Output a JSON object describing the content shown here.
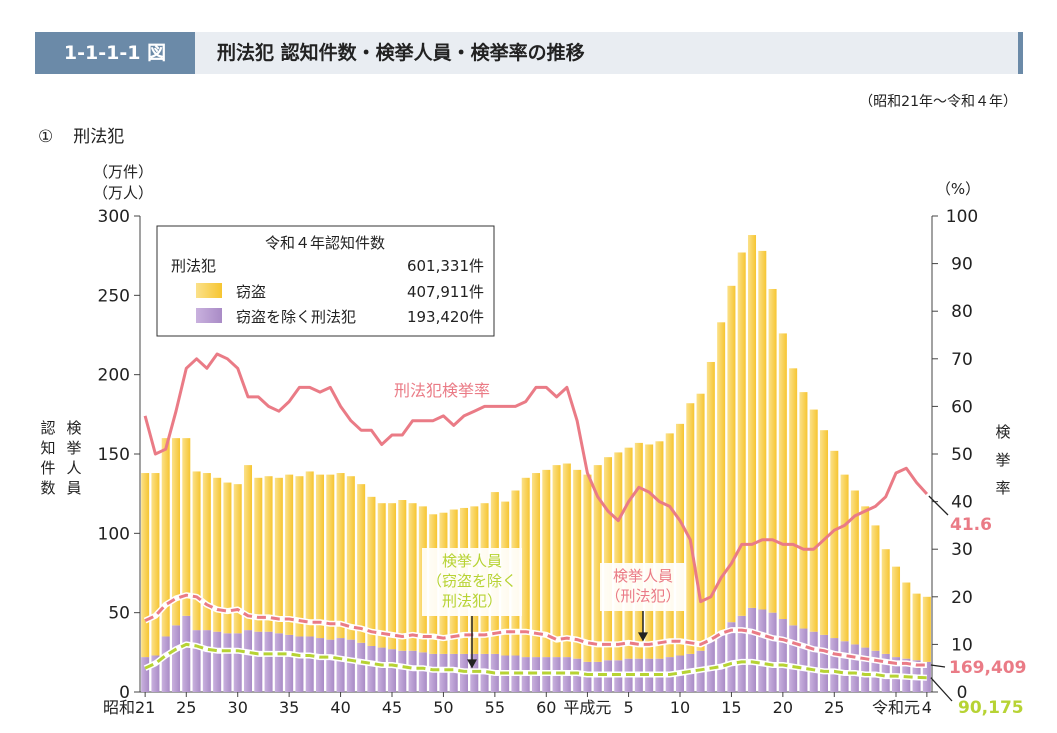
{
  "header": {
    "figure_number": "1-1-1-1 図",
    "title": "刑法犯 認知件数・検挙人員・検挙率の推移"
  },
  "period": "（昭和21年～令和４年）",
  "section": {
    "number": "①",
    "title": "刑法犯"
  },
  "colors": {
    "theft": "#f6c531",
    "theft_light": "#fbe18a",
    "non_theft": "#a98bc6",
    "non_theft_light": "#c9b1de",
    "arrest_rate": "#ea7b86",
    "arrested_total": "#ea7b86",
    "arrested_non_theft": "#b7d334",
    "header_accent": "#6b8aa8"
  },
  "chart_data": {
    "type": "bar",
    "title": "",
    "left_axis": {
      "unit_lines": [
        "（万件）",
        "（万人）"
      ],
      "label_a": "認知件数",
      "label_b": "検挙人員",
      "range": [
        0,
        300
      ],
      "ticks": [
        "0",
        "50",
        "100",
        "150",
        "200",
        "250",
        "300"
      ]
    },
    "right_axis": {
      "unit": "（%）",
      "label": "検挙率",
      "range": [
        0,
        100
      ],
      "ticks": [
        "0",
        "10",
        "20",
        "30",
        "40",
        "50",
        "60",
        "70",
        "80",
        "90",
        "100"
      ]
    },
    "x_tick_labels": [
      {
        "index": 0,
        "label": "昭和21"
      },
      {
        "index": 4,
        "label": "25"
      },
      {
        "index": 9,
        "label": "30"
      },
      {
        "index": 14,
        "label": "35"
      },
      {
        "index": 19,
        "label": "40"
      },
      {
        "index": 24,
        "label": "45"
      },
      {
        "index": 29,
        "label": "50"
      },
      {
        "index": 34,
        "label": "55"
      },
      {
        "index": 39,
        "label": "60"
      },
      {
        "index": 43,
        "label": "平成元"
      },
      {
        "index": 47,
        "label": "5"
      },
      {
        "index": 52,
        "label": "10"
      },
      {
        "index": 57,
        "label": "15"
      },
      {
        "index": 62,
        "label": "20"
      },
      {
        "index": 67,
        "label": "25"
      },
      {
        "index": 73,
        "label": "令和元"
      },
      {
        "index": 76,
        "label": "4"
      }
    ],
    "legend": {
      "heading": "令和４年認知件数",
      "rows": [
        {
          "label": "刑法犯",
          "value": "601,331件"
        },
        {
          "label": "窃盗",
          "value": "407,911件"
        },
        {
          "label": "窃盗を除く刑法犯",
          "value": "193,420件"
        }
      ],
      "position": "top-left"
    },
    "series": [
      {
        "name": "窃盗",
        "type": "bar",
        "axis": "left",
        "values": [
          116,
          115,
          125,
          118,
          112,
          100,
          99,
          97,
          95,
          94,
          104,
          97,
          98,
          98,
          101,
          101,
          104,
          103,
          104,
          104,
          103,
          100,
          94,
          91,
          92,
          95,
          93,
          92,
          88,
          89,
          91,
          92,
          93,
          95,
          102,
          97,
          104,
          113,
          116,
          118,
          121,
          122,
          119,
          118,
          124,
          128,
          131,
          133,
          136,
          135,
          137,
          141,
          146,
          158,
          162,
          176,
          195,
          212,
          229,
          235,
          226,
          204,
          180,
          162,
          149,
          140,
          129,
          118,
          105,
          97,
          89,
          79,
          66,
          57,
          48,
          42,
          41
        ]
      },
      {
        "name": "窃盗を除く刑法犯",
        "type": "bar",
        "axis": "left",
        "values": [
          22,
          23,
          35,
          42,
          48,
          39,
          39,
          38,
          37,
          37,
          39,
          38,
          38,
          37,
          36,
          35,
          35,
          34,
          33,
          34,
          33,
          31,
          29,
          28,
          27,
          26,
          26,
          25,
          24,
          24,
          24,
          24,
          24,
          24,
          24,
          23,
          23,
          22,
          22,
          22,
          22,
          22,
          21,
          19,
          19,
          20,
          20,
          21,
          21,
          21,
          21,
          22,
          23,
          24,
          26,
          32,
          38,
          44,
          48,
          53,
          52,
          50,
          46,
          42,
          40,
          38,
          36,
          34,
          32,
          30,
          28,
          26,
          24,
          22,
          21,
          20,
          19
        ]
      },
      {
        "name": "刑法犯検挙率",
        "type": "line",
        "axis": "right",
        "values": [
          58,
          50,
          51,
          59,
          68,
          70,
          68,
          71,
          70,
          68,
          62,
          62,
          60,
          59,
          61,
          64,
          64,
          63,
          64,
          60,
          57,
          55,
          55,
          52,
          54,
          54,
          57,
          57,
          57,
          58,
          56,
          58,
          59,
          60,
          60,
          60,
          60,
          61,
          64,
          64,
          62,
          64,
          57,
          46,
          41,
          38,
          36,
          40,
          43,
          42,
          40,
          39,
          36,
          32,
          19,
          20,
          24,
          27,
          31,
          31,
          32,
          32,
          31,
          31,
          30,
          30,
          32,
          34,
          35,
          37,
          38,
          39,
          41,
          46,
          47,
          44,
          41.6
        ]
      },
      {
        "name": "検挙人員（刑法犯）",
        "type": "line",
        "axis": "left",
        "values": [
          45,
          48,
          55,
          59,
          61,
          60,
          55,
          52,
          51,
          52,
          48,
          47,
          47,
          46,
          46,
          45,
          44,
          44,
          43,
          43,
          41,
          40,
          38,
          37,
          36,
          35,
          36,
          35,
          35,
          34,
          35,
          36,
          36,
          36,
          37,
          38,
          38,
          38,
          37,
          36,
          33,
          34,
          33,
          31,
          30,
          30,
          30,
          31,
          30,
          30,
          31,
          32,
          32,
          31,
          30,
          33,
          37,
          39,
          39,
          38,
          36,
          34,
          33,
          31,
          29,
          27,
          26,
          24,
          23,
          22,
          21,
          20,
          19,
          18,
          18,
          17,
          17
        ]
      },
      {
        "name": "検挙人員（窃盗を除く刑法犯）",
        "type": "line",
        "axis": "left",
        "values": [
          15,
          18,
          23,
          27,
          30,
          29,
          27,
          26,
          26,
          26,
          25,
          24,
          24,
          24,
          24,
          23,
          23,
          22,
          22,
          21,
          20,
          19,
          18,
          17,
          17,
          16,
          15,
          15,
          14,
          14,
          14,
          13,
          13,
          13,
          12,
          12,
          12,
          12,
          12,
          12,
          12,
          12,
          12,
          11,
          11,
          11,
          11,
          11,
          11,
          11,
          11,
          11,
          12,
          13,
          14,
          15,
          16,
          18,
          19,
          19,
          18,
          17,
          17,
          16,
          15,
          14,
          13,
          13,
          12,
          12,
          11,
          11,
          10,
          10,
          9.6,
          9.2,
          9.0
        ]
      }
    ],
    "annotations": [
      {
        "label": "刑法犯検挙率",
        "color_key": "arrest_rate"
      },
      {
        "label": "検挙人員\n（窃盗を除く\n刑法犯）",
        "color_key": "arrested_non_theft"
      },
      {
        "label": "検挙人員\n（刑法犯）",
        "color_key": "arrested_total"
      }
    ],
    "end_labels": [
      {
        "label": "41.6",
        "color_key": "arrest_rate"
      },
      {
        "label": "169,409",
        "color_key": "arrested_total"
      },
      {
        "label": "90,175",
        "color_key": "arrested_non_theft"
      }
    ]
  }
}
